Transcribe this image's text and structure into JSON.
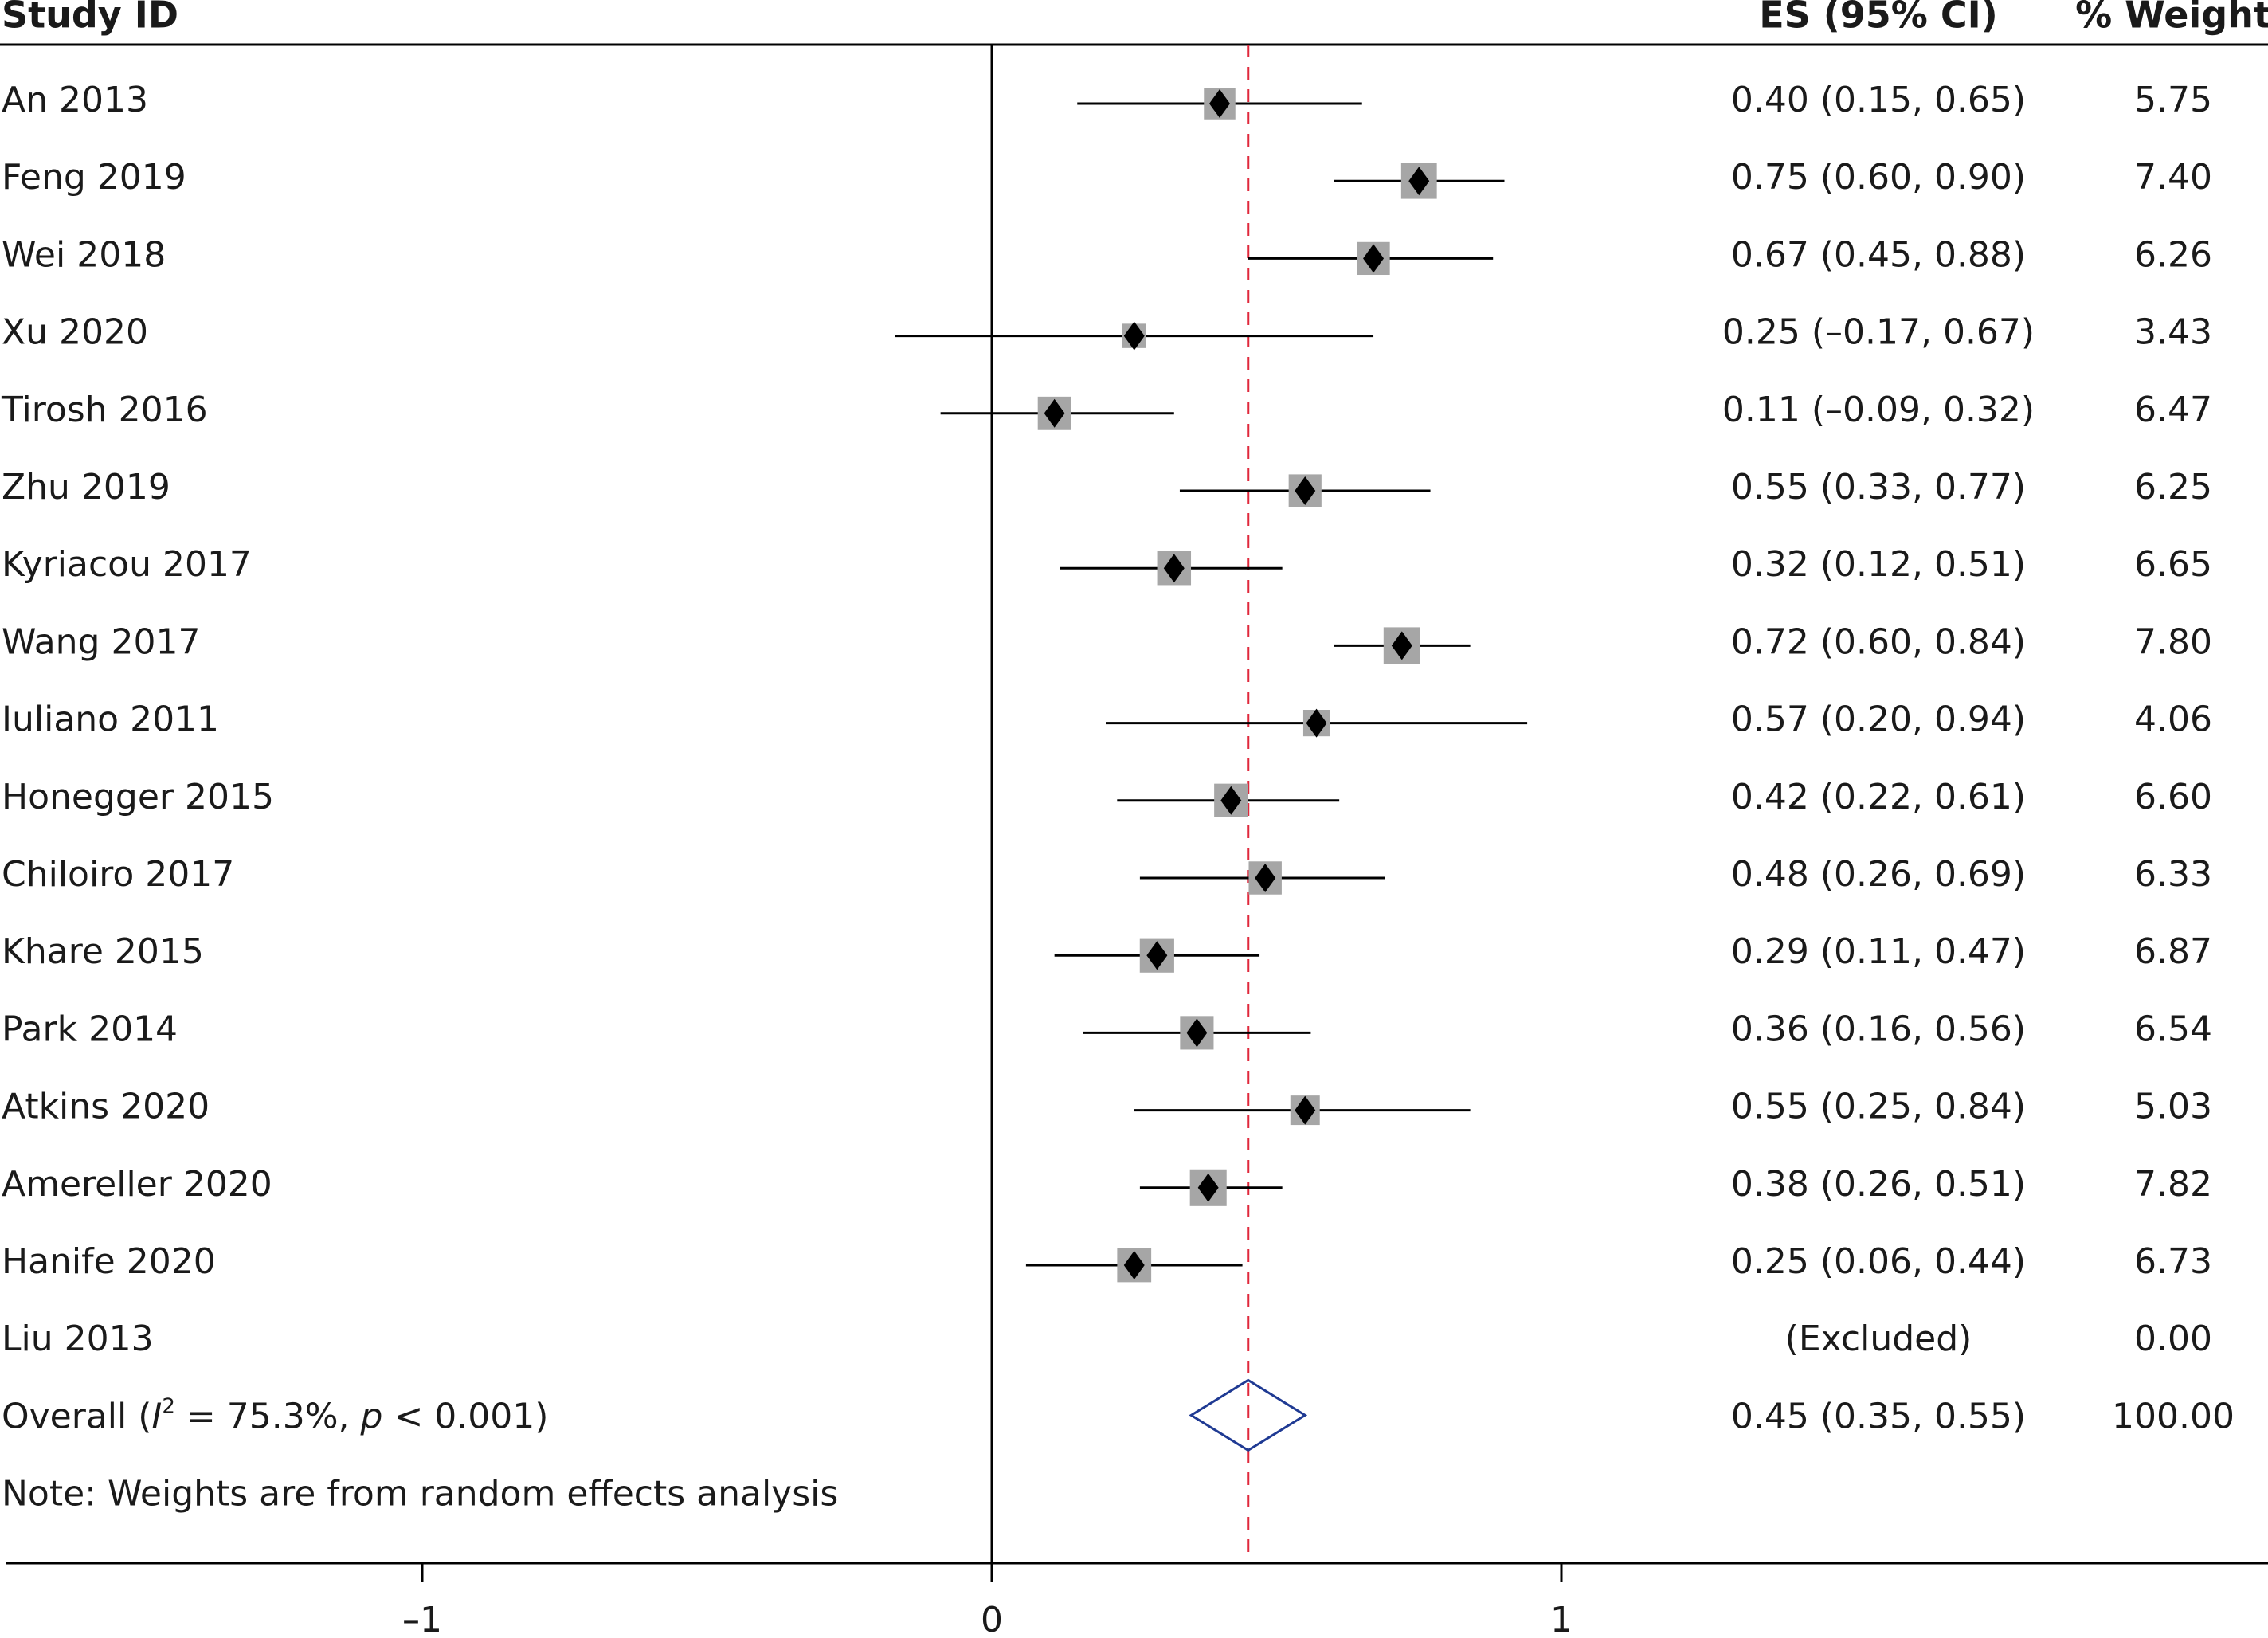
{
  "chart_data": {
    "type": "forest",
    "headers": {
      "study": "Study ID",
      "es": "ES (95% CI)",
      "weight": "% Weight"
    },
    "rows": [
      {
        "label": "An 2013",
        "es": 0.4,
        "lo": 0.15,
        "hi": 0.65,
        "ci_text": "0.40 (0.15, 0.65)",
        "weight_text": "5.75"
      },
      {
        "label": "Feng 2019",
        "es": 0.75,
        "lo": 0.6,
        "hi": 0.9,
        "ci_text": "0.75 (0.60, 0.90)",
        "weight_text": "7.40"
      },
      {
        "label": "Wei 2018",
        "es": 0.67,
        "lo": 0.45,
        "hi": 0.88,
        "ci_text": "0.67 (0.45, 0.88)",
        "weight_text": "6.26"
      },
      {
        "label": "Xu 2020",
        "es": 0.25,
        "lo": -0.17,
        "hi": 0.67,
        "ci_text": "0.25 (–0.17, 0.67)",
        "weight_text": "3.43"
      },
      {
        "label": "Tirosh 2016",
        "es": 0.11,
        "lo": -0.09,
        "hi": 0.32,
        "ci_text": "0.11 (–0.09, 0.32)",
        "weight_text": "6.47"
      },
      {
        "label": "Zhu 2019",
        "es": 0.55,
        "lo": 0.33,
        "hi": 0.77,
        "ci_text": "0.55 (0.33, 0.77)",
        "weight_text": "6.25"
      },
      {
        "label": "Kyriacou 2017",
        "es": 0.32,
        "lo": 0.12,
        "hi": 0.51,
        "ci_text": "0.32 (0.12, 0.51)",
        "weight_text": "6.65"
      },
      {
        "label": "Wang 2017",
        "es": 0.72,
        "lo": 0.6,
        "hi": 0.84,
        "ci_text": "0.72 (0.60, 0.84)",
        "weight_text": "7.80"
      },
      {
        "label": "Iuliano 2011",
        "es": 0.57,
        "lo": 0.2,
        "hi": 0.94,
        "ci_text": "0.57 (0.20, 0.94)",
        "weight_text": "4.06"
      },
      {
        "label": "Honegger 2015",
        "es": 0.42,
        "lo": 0.22,
        "hi": 0.61,
        "ci_text": "0.42 (0.22, 0.61)",
        "weight_text": "6.60"
      },
      {
        "label": "Chiloiro 2017",
        "es": 0.48,
        "lo": 0.26,
        "hi": 0.69,
        "ci_text": "0.48 (0.26, 0.69)",
        "weight_text": "6.33"
      },
      {
        "label": "Khare 2015",
        "es": 0.29,
        "lo": 0.11,
        "hi": 0.47,
        "ci_text": "0.29 (0.11, 0.47)",
        "weight_text": "6.87"
      },
      {
        "label": "Park 2014",
        "es": 0.36,
        "lo": 0.16,
        "hi": 0.56,
        "ci_text": "0.36 (0.16, 0.56)",
        "weight_text": "6.54"
      },
      {
        "label": "Atkins 2020",
        "es": 0.55,
        "lo": 0.25,
        "hi": 0.84,
        "ci_text": "0.55 (0.25, 0.84)",
        "weight_text": "5.03"
      },
      {
        "label": "Amereller 2020",
        "es": 0.38,
        "lo": 0.26,
        "hi": 0.51,
        "ci_text": "0.38 (0.26, 0.51)",
        "weight_text": "7.82"
      },
      {
        "label": "Hanife 2020",
        "es": 0.25,
        "lo": 0.06,
        "hi": 0.44,
        "ci_text": "0.25 (0.06, 0.44)",
        "weight_text": "6.73"
      },
      {
        "label": "Liu 2013",
        "es": null,
        "lo": null,
        "hi": null,
        "ci_text": "(Excluded)",
        "weight_text": "0.00"
      }
    ],
    "overall": {
      "label_prefix": "Overall (",
      "label_i": "I",
      "label_sup": "2",
      "label_mid": " = 75.3%, ",
      "label_p": "p",
      "label_suffix": " < 0.001)",
      "es": 0.45,
      "lo": 0.35,
      "hi": 0.55,
      "ci_text": "0.45 (0.35, 0.55)",
      "weight_text": "100.00"
    },
    "note": "Note: Weights are from random effects analysis",
    "x_ticks": [
      {
        "value": -1,
        "label": "–1"
      },
      {
        "value": 0,
        "label": "0"
      },
      {
        "value": 1,
        "label": "1"
      }
    ],
    "xlim": [
      -1.73,
      2.18
    ],
    "reference_line": 0,
    "overall_line": 0.45,
    "colors": {
      "text": "#1a1a1a",
      "box": "#a6a6a6",
      "marker": "#000000",
      "ci_line": "#000000",
      "overall_diamond": "#1f3a93",
      "overall_line": "#e0283c"
    }
  }
}
